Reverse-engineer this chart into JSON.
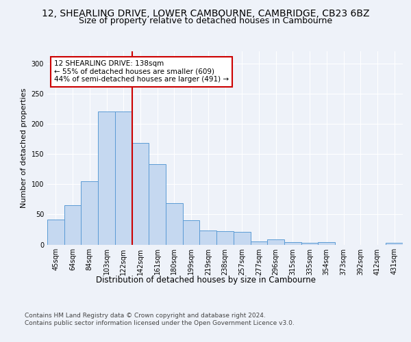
{
  "title": "12, SHEARLING DRIVE, LOWER CAMBOURNE, CAMBRIDGE, CB23 6BZ",
  "subtitle": "Size of property relative to detached houses in Cambourne",
  "xlabel": "Distribution of detached houses by size in Cambourne",
  "ylabel": "Number of detached properties",
  "categories": [
    "45sqm",
    "64sqm",
    "84sqm",
    "103sqm",
    "122sqm",
    "142sqm",
    "161sqm",
    "180sqm",
    "199sqm",
    "219sqm",
    "238sqm",
    "257sqm",
    "277sqm",
    "296sqm",
    "315sqm",
    "335sqm",
    "354sqm",
    "373sqm",
    "392sqm",
    "412sqm",
    "431sqm"
  ],
  "values": [
    41,
    65,
    105,
    220,
    220,
    168,
    133,
    68,
    40,
    23,
    22,
    21,
    5,
    8,
    4,
    3,
    4,
    0,
    0,
    0,
    3
  ],
  "bar_color": "#c5d8f0",
  "bar_edge_color": "#5b9bd5",
  "vline_bar_index": 4,
  "vline_color": "#cc0000",
  "annotation_text": "12 SHEARLING DRIVE: 138sqm\n← 55% of detached houses are smaller (609)\n44% of semi-detached houses are larger (491) →",
  "annotation_box_color": "#ffffff",
  "annotation_box_edge_color": "#cc0000",
  "background_color": "#eef2f9",
  "grid_color": "#ffffff",
  "footer_text": "Contains HM Land Registry data © Crown copyright and database right 2024.\nContains public sector information licensed under the Open Government Licence v3.0.",
  "ylim": [
    0,
    320
  ],
  "yticks": [
    0,
    50,
    100,
    150,
    200,
    250,
    300
  ],
  "title_fontsize": 10,
  "subtitle_fontsize": 9,
  "xlabel_fontsize": 8.5,
  "ylabel_fontsize": 8,
  "tick_fontsize": 7,
  "annotation_fontsize": 7.5,
  "footer_fontsize": 6.5
}
